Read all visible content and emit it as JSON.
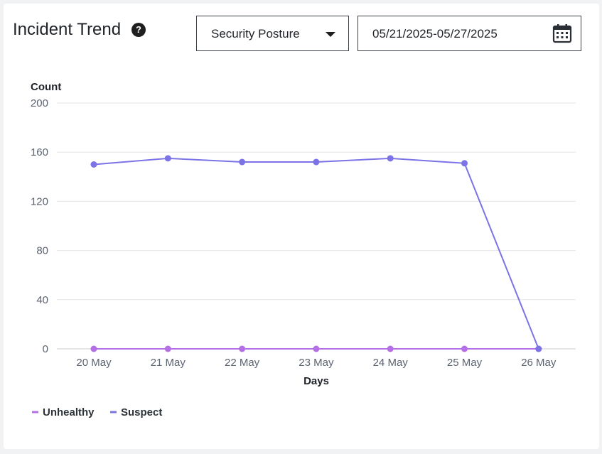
{
  "header": {
    "title": "Incident Trend",
    "help_icon": "help-circle-icon",
    "help_glyph": "?"
  },
  "filters": {
    "category_select": "Security Posture",
    "date_range": "05/21/2025-05/27/2025",
    "calendar_icon": "calendar-icon"
  },
  "colors": {
    "unhealthy": "#b46ee6",
    "suspect": "#7b73e6",
    "grid": "#e3e5e8"
  },
  "chart_data": {
    "type": "line",
    "ylabel": "Count",
    "xlabel": "Days",
    "ylim": [
      0,
      200
    ],
    "yticks": [
      0,
      40,
      80,
      120,
      160,
      200
    ],
    "categories": [
      "20 May",
      "21 May",
      "22 May",
      "23 May",
      "24 May",
      "25 May",
      "26 May"
    ],
    "grid": true,
    "legend_position": "bottom-left",
    "series": [
      {
        "name": "Unhealthy",
        "values": [
          0,
          0,
          0,
          0,
          0,
          0,
          0
        ]
      },
      {
        "name": "Suspect",
        "values": [
          150,
          155,
          152,
          152,
          155,
          151,
          0
        ]
      }
    ]
  }
}
